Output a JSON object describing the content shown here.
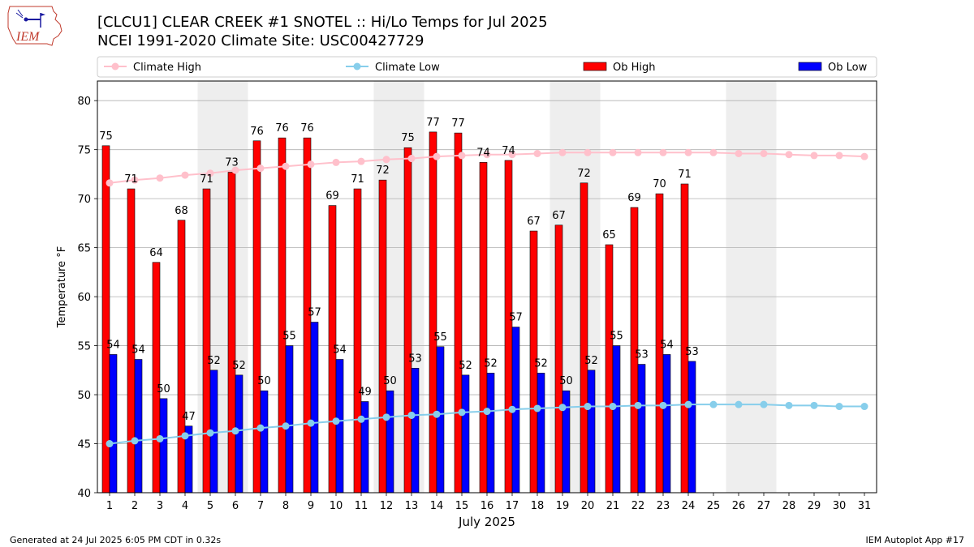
{
  "header": {
    "title_line1": "[CLCU1] CLEAR CREEK #1 SNOTEL :: Hi/Lo Temps for Jul 2025",
    "title_line2": "NCEI 1991-2020 Climate Site: USC00427729"
  },
  "logo": {
    "text": "IEM",
    "name": "iem-logo"
  },
  "footer": {
    "left": "Generated at 24 Jul 2025 6:05 PM CDT in 0.32s",
    "right": "IEM Autoplot App #17"
  },
  "colors": {
    "ob_high": "#ff0000",
    "ob_low": "#0000ff",
    "climate_high": "#ffc0cb",
    "climate_low": "#87ceeb",
    "weekend_shade": "#eeeeee",
    "grid": "#b0b0b0"
  },
  "chart_data": {
    "type": "bar",
    "xlabel": "July 2025",
    "ylabel": "Temperature °F",
    "ylim": [
      40,
      82
    ],
    "yticks": [
      40,
      45,
      50,
      55,
      60,
      65,
      70,
      75,
      80
    ],
    "grid": "horizontal",
    "legend_placement": "top",
    "days": [
      1,
      2,
      3,
      4,
      5,
      6,
      7,
      8,
      9,
      10,
      11,
      12,
      13,
      14,
      15,
      16,
      17,
      18,
      19,
      20,
      21,
      22,
      23,
      24,
      25,
      26,
      27,
      28,
      29,
      30,
      31
    ],
    "weekend_days": [
      5,
      6,
      12,
      13,
      19,
      20,
      26,
      27
    ],
    "series": [
      {
        "name": "Ob High",
        "kind": "bar",
        "values": [
          75.4,
          71,
          63.5,
          67.8,
          71,
          72.7,
          75.9,
          76.2,
          76.2,
          69.3,
          71,
          71.9,
          75.2,
          76.8,
          76.7,
          73.7,
          73.9,
          66.7,
          67.3,
          71.6,
          65.3,
          69.1,
          70.5,
          71.5
        ],
        "labels": [
          "75",
          "71",
          "64",
          "68",
          "71",
          "73",
          "76",
          "76",
          "76",
          "69",
          "71",
          "72",
          "75",
          "77",
          "77",
          "74",
          "74",
          "67",
          "67",
          "72",
          "65",
          "69",
          "70",
          "71"
        ]
      },
      {
        "name": "Ob Low",
        "kind": "bar",
        "values": [
          54.1,
          53.6,
          49.6,
          46.8,
          52.5,
          52,
          50.4,
          55,
          57.4,
          53.6,
          49.3,
          50.4,
          52.7,
          54.9,
          52,
          52.2,
          56.9,
          52.2,
          50.4,
          52.5,
          55,
          53.1,
          54.1,
          53.4
        ],
        "labels": [
          "54",
          "54",
          "50",
          "47",
          "52",
          "52",
          "50",
          "55",
          "57",
          "54",
          "49",
          "50",
          "53",
          "55",
          "52",
          "52",
          "57",
          "52",
          "50",
          "52",
          "55",
          "53",
          "54",
          "53"
        ]
      },
      {
        "name": "Climate High",
        "kind": "line",
        "values": [
          71.6,
          71.9,
          72.1,
          72.4,
          72.6,
          72.9,
          73.1,
          73.3,
          73.5,
          73.7,
          73.8,
          74,
          74.1,
          74.3,
          74.4,
          74.5,
          74.5,
          74.6,
          74.7,
          74.7,
          74.7,
          74.7,
          74.7,
          74.7,
          74.7,
          74.6,
          74.6,
          74.5,
          74.4,
          74.4,
          74.3
        ]
      },
      {
        "name": "Climate Low",
        "kind": "line",
        "values": [
          45,
          45.3,
          45.5,
          45.8,
          46.1,
          46.3,
          46.6,
          46.8,
          47.1,
          47.3,
          47.5,
          47.7,
          47.9,
          48,
          48.2,
          48.3,
          48.5,
          48.6,
          48.7,
          48.8,
          48.8,
          48.9,
          48.9,
          49,
          49,
          49,
          49,
          48.9,
          48.9,
          48.8,
          48.8
        ]
      }
    ]
  }
}
